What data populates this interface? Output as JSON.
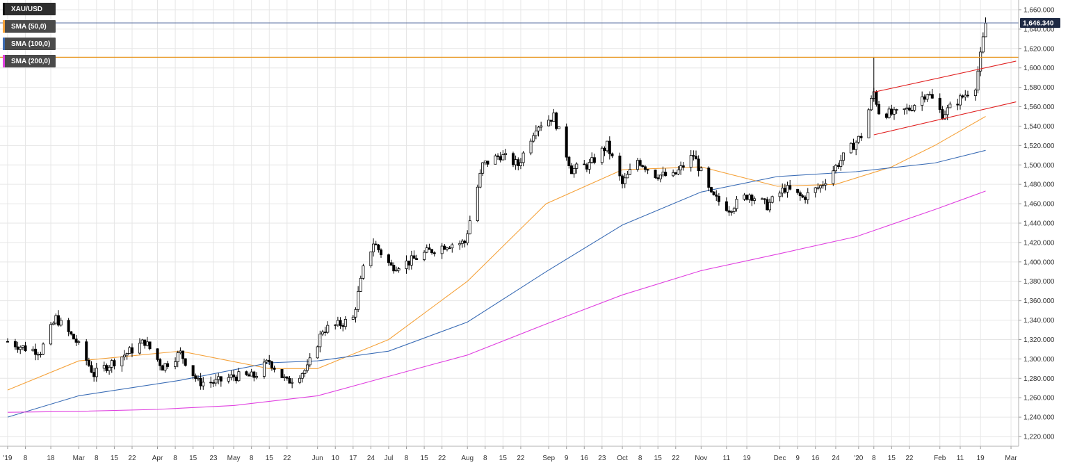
{
  "legend": {
    "items": [
      {
        "label": "XAU/USD",
        "color": "#000000"
      },
      {
        "label": "SMA (50,0)",
        "color": "#f5a23a"
      },
      {
        "label": "SMA (100,0)",
        "color": "#3a6cb5"
      },
      {
        "label": "SMA (200,0)",
        "color": "#e040e0"
      }
    ]
  },
  "price_tag": "1,646.340",
  "colors": {
    "sma50": "#f5a23a",
    "sma100": "#3a6cb5",
    "sma200": "#e040e0",
    "resistance": "#e8961e",
    "channel": "#e02020",
    "current_line": "#5a6fa0",
    "grid": "#e6e6e6",
    "candle": "#000000"
  },
  "chart_data": {
    "type": "candlestick",
    "symbol": "XAU/USD",
    "ylim": [
      1210,
      1670
    ],
    "yticks": [
      "1,220.000",
      "1,240.000",
      "1,260.000",
      "1,280.000",
      "1,300.000",
      "1,320.000",
      "1,340.000",
      "1,360.000",
      "1,380.000",
      "1,400.000",
      "1,420.000",
      "1,440.000",
      "1,460.000",
      "1,480.000",
      "1,500.000",
      "1,520.000",
      "1,540.000",
      "1,560.000",
      "1,580.000",
      "1,600.000",
      "1,620.000",
      "1,640.000",
      "1,660.000"
    ],
    "xticks": [
      "'19",
      "8",
      "18",
      "Mar",
      "8",
      "15",
      "22",
      "Apr",
      "8",
      "15",
      "23",
      "May",
      "8",
      "15",
      "22",
      "Jun",
      "10",
      "17",
      "24",
      "Jul",
      "8",
      "15",
      "22",
      "Aug",
      "8",
      "15",
      "22",
      "Sep",
      "9",
      "16",
      "23",
      "Oct",
      "8",
      "15",
      "22",
      "Nov",
      "11",
      "19",
      "Dec",
      "9",
      "16",
      "24",
      "'20",
      "8",
      "15",
      "22",
      "Feb",
      "11",
      "19",
      "Mar"
    ],
    "xtick_dates": [
      "2019-02-01",
      "2019-02-08",
      "2019-02-18",
      "2019-03-01",
      "2019-03-08",
      "2019-03-15",
      "2019-03-22",
      "2019-04-01",
      "2019-04-08",
      "2019-04-15",
      "2019-04-23",
      "2019-05-01",
      "2019-05-08",
      "2019-05-15",
      "2019-05-22",
      "2019-06-03",
      "2019-06-10",
      "2019-06-17",
      "2019-06-24",
      "2019-07-01",
      "2019-07-08",
      "2019-07-15",
      "2019-07-22",
      "2019-08-01",
      "2019-08-08",
      "2019-08-15",
      "2019-08-22",
      "2019-09-02",
      "2019-09-09",
      "2019-09-16",
      "2019-09-23",
      "2019-10-01",
      "2019-10-08",
      "2019-10-15",
      "2019-10-22",
      "2019-11-01",
      "2019-11-11",
      "2019-11-19",
      "2019-12-02",
      "2019-12-09",
      "2019-12-16",
      "2019-12-24",
      "2020-01-02",
      "2020-01-08",
      "2020-01-15",
      "2020-01-22",
      "2020-02-03",
      "2020-02-11",
      "2020-02-19",
      "2020-03-02"
    ],
    "last_price": 1646.34,
    "horizontal_levels": [
      {
        "name": "resistance",
        "value": 1611
      },
      {
        "name": "current",
        "value": 1646.34
      }
    ],
    "channel": {
      "upper": {
        "x": [
          "2020-01-08",
          "2020-03-04"
        ],
        "y": [
          1575,
          1607
        ]
      },
      "lower": {
        "x": [
          "2020-01-08",
          "2020-03-04"
        ],
        "y": [
          1531,
          1565
        ]
      }
    },
    "anchors": [
      [
        "2019-02-01",
        1318
      ],
      [
        "2019-02-08",
        1311
      ],
      [
        "2019-02-14",
        1308
      ],
      [
        "2019-02-20",
        1342
      ],
      [
        "2019-02-28",
        1318
      ],
      [
        "2019-03-07",
        1284
      ],
      [
        "2019-03-14",
        1296
      ],
      [
        "2019-03-20",
        1306
      ],
      [
        "2019-03-27",
        1318
      ],
      [
        "2019-04-03",
        1292
      ],
      [
        "2019-04-10",
        1306
      ],
      [
        "2019-04-17",
        1276
      ],
      [
        "2019-04-24",
        1276
      ],
      [
        "2019-05-01",
        1282
      ],
      [
        "2019-05-09",
        1282
      ],
      [
        "2019-05-15",
        1298
      ],
      [
        "2019-05-22",
        1276
      ],
      [
        "2019-05-30",
        1290
      ],
      [
        "2019-06-05",
        1330
      ],
      [
        "2019-06-12",
        1336
      ],
      [
        "2019-06-17",
        1342
      ],
      [
        "2019-06-21",
        1392
      ],
      [
        "2019-06-25",
        1420
      ],
      [
        "2019-07-02",
        1395
      ],
      [
        "2019-07-09",
        1400
      ],
      [
        "2019-07-16",
        1410
      ],
      [
        "2019-07-24",
        1418
      ],
      [
        "2019-07-31",
        1420
      ],
      [
        "2019-08-07",
        1500
      ],
      [
        "2019-08-14",
        1510
      ],
      [
        "2019-08-21",
        1500
      ],
      [
        "2019-08-28",
        1540
      ],
      [
        "2019-09-04",
        1550
      ],
      [
        "2019-09-11",
        1495
      ],
      [
        "2019-09-18",
        1500
      ],
      [
        "2019-09-25",
        1520
      ],
      [
        "2019-10-01",
        1480
      ],
      [
        "2019-10-07",
        1505
      ],
      [
        "2019-10-14",
        1490
      ],
      [
        "2019-10-21",
        1488
      ],
      [
        "2019-10-29",
        1510
      ],
      [
        "2019-11-05",
        1468
      ],
      [
        "2019-11-12",
        1455
      ],
      [
        "2019-11-20",
        1470
      ],
      [
        "2019-11-27",
        1458
      ],
      [
        "2019-12-04",
        1476
      ],
      [
        "2019-12-11",
        1466
      ],
      [
        "2019-12-18",
        1478
      ],
      [
        "2019-12-26",
        1505
      ],
      [
        "2020-01-03",
        1530
      ],
      [
        "2020-01-08",
        1575
      ],
      [
        "2020-01-10",
        1555
      ],
      [
        "2020-01-16",
        1552
      ],
      [
        "2020-01-22",
        1558
      ],
      [
        "2020-01-29",
        1575
      ],
      [
        "2020-02-04",
        1552
      ],
      [
        "2020-02-11",
        1568
      ],
      [
        "2020-02-17",
        1582
      ],
      [
        "2020-02-19",
        1612
      ],
      [
        "2020-02-21",
        1646
      ]
    ],
    "series": [
      {
        "name": "SMA (50,0)",
        "x": [
          "2019-02-01",
          "2019-03-01",
          "2019-04-10",
          "2019-05-15",
          "2019-06-03",
          "2019-07-01",
          "2019-08-01",
          "2019-09-01",
          "2019-10-01",
          "2019-11-01",
          "2019-12-01",
          "2019-12-24",
          "2020-01-15",
          "2020-02-01",
          "2020-02-21"
        ],
        "y": [
          1268,
          1298,
          1308,
          1290,
          1290,
          1320,
          1380,
          1460,
          1495,
          1498,
          1478,
          1480,
          1498,
          1520,
          1550
        ]
      },
      {
        "name": "SMA (100,0)",
        "x": [
          "2019-02-01",
          "2019-03-01",
          "2019-04-10",
          "2019-05-15",
          "2019-06-03",
          "2019-07-01",
          "2019-08-01",
          "2019-09-01",
          "2019-10-01",
          "2019-11-01",
          "2019-12-01",
          "2020-01-01",
          "2020-02-01",
          "2020-02-21"
        ],
        "y": [
          1240,
          1262,
          1278,
          1296,
          1298,
          1308,
          1338,
          1390,
          1438,
          1472,
          1488,
          1493,
          1502,
          1515
        ]
      },
      {
        "name": "SMA (200,0)",
        "x": [
          "2019-02-01",
          "2019-03-01",
          "2019-04-01",
          "2019-05-01",
          "2019-06-03",
          "2019-07-01",
          "2019-08-01",
          "2019-09-01",
          "2019-10-01",
          "2019-11-01",
          "2019-12-01",
          "2020-01-01",
          "2020-02-01",
          "2020-02-21"
        ],
        "y": [
          1245,
          1246,
          1248,
          1252,
          1262,
          1282,
          1304,
          1336,
          1366,
          1391,
          1408,
          1426,
          1454,
          1473
        ]
      }
    ]
  }
}
